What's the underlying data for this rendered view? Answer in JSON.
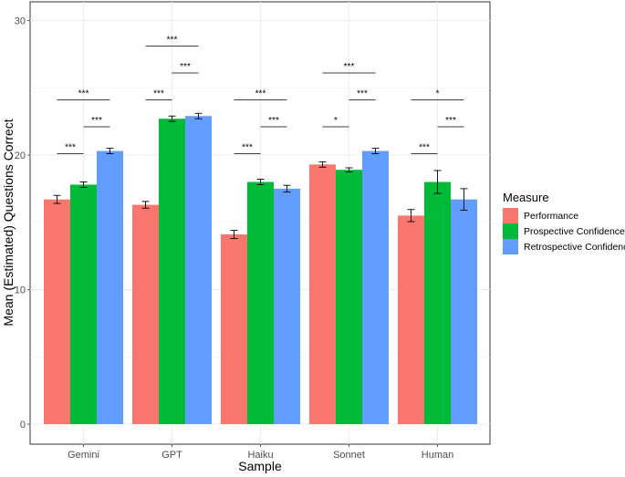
{
  "chart_data": {
    "type": "bar",
    "xlabel": "Sample",
    "ylabel": "Mean (Estimated) Questions Correct",
    "ylim": [
      0,
      31
    ],
    "yticks": [
      0,
      10,
      20,
      30
    ],
    "grid": true,
    "legend_position": "right",
    "legend_title": "Measure",
    "categories": [
      "Gemini",
      "GPT",
      "Haiku",
      "Sonnet",
      "Human"
    ],
    "series": [
      {
        "name": "Performance",
        "color": "#F8766D",
        "values": [
          16.7,
          16.3,
          14.1,
          19.3,
          15.5
        ],
        "errors": [
          0.3,
          0.25,
          0.3,
          0.2,
          0.45
        ]
      },
      {
        "name": "Prospective Confidence",
        "color": "#00BA38",
        "values": [
          17.8,
          22.7,
          18.0,
          18.9,
          18.0
        ],
        "errors": [
          0.2,
          0.2,
          0.2,
          0.15,
          0.85
        ]
      },
      {
        "name": "Retrospective Confidence",
        "color": "#619CFF",
        "values": [
          20.3,
          22.9,
          17.5,
          20.3,
          16.7
        ],
        "errors": [
          0.2,
          0.2,
          0.25,
          0.2,
          0.8
        ]
      }
    ],
    "significance": [
      {
        "category": 0,
        "from": 0,
        "to": 1,
        "y": 20.1,
        "label": "***"
      },
      {
        "category": 0,
        "from": 1,
        "to": 2,
        "y": 22.1,
        "label": "***"
      },
      {
        "category": 0,
        "from": 0,
        "to": 2,
        "y": 24.1,
        "label": "***"
      },
      {
        "category": 1,
        "from": 0,
        "to": 1,
        "y": 24.1,
        "label": "***"
      },
      {
        "category": 1,
        "from": 1,
        "to": 2,
        "y": 26.1,
        "label": "***"
      },
      {
        "category": 1,
        "from": 0,
        "to": 2,
        "y": 28.1,
        "label": "***"
      },
      {
        "category": 2,
        "from": 0,
        "to": 1,
        "y": 20.1,
        "label": "***"
      },
      {
        "category": 2,
        "from": 1,
        "to": 2,
        "y": 22.1,
        "label": "***"
      },
      {
        "category": 2,
        "from": 0,
        "to": 2,
        "y": 24.1,
        "label": "***"
      },
      {
        "category": 3,
        "from": 0,
        "to": 1,
        "y": 22.1,
        "label": "*"
      },
      {
        "category": 3,
        "from": 1,
        "to": 2,
        "y": 24.1,
        "label": "***"
      },
      {
        "category": 3,
        "from": 0,
        "to": 2,
        "y": 26.1,
        "label": "***"
      },
      {
        "category": 4,
        "from": 0,
        "to": 1,
        "y": 20.1,
        "label": "***"
      },
      {
        "category": 4,
        "from": 1,
        "to": 2,
        "y": 22.1,
        "label": "***"
      },
      {
        "category": 4,
        "from": 0,
        "to": 2,
        "y": 24.1,
        "label": "*"
      }
    ]
  }
}
